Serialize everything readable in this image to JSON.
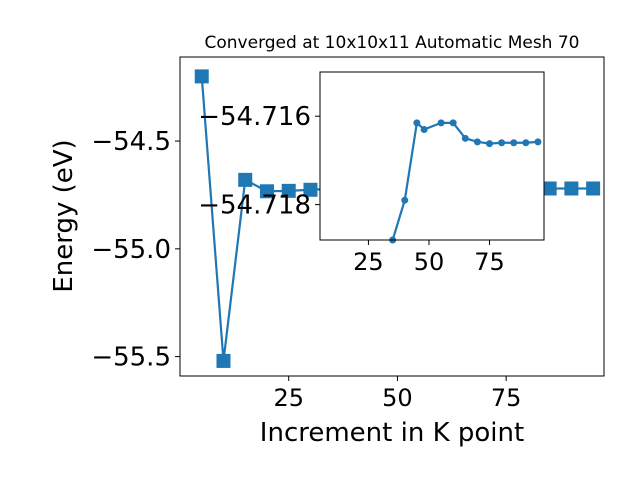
{
  "chart_data": [
    {
      "id": "main",
      "type": "line",
      "title": "Converged at 10x10x11 Automatic Mesh 70",
      "xlabel": "Increment in K point",
      "ylabel": "Energy (eV)",
      "xlim": [
        0,
        97.5
      ],
      "ylim": [
        -55.59,
        -54.11
      ],
      "xticks": [
        25,
        50,
        75
      ],
      "yticks": [
        -54.5,
        -55.0,
        -55.5
      ],
      "ytick_labels": [
        "−54.5",
        "−55.0",
        "−55.5"
      ],
      "grid": false,
      "marker": "square",
      "color": "#1f77b4",
      "series": [
        {
          "x": [
            5,
            10,
            15,
            20,
            25,
            30,
            35,
            40,
            45,
            50,
            55,
            60,
            65,
            70,
            75,
            80,
            85,
            90,
            95
          ],
          "y": [
            -54.2,
            -55.52,
            -54.68,
            -54.733,
            -54.731,
            -54.726,
            -54.722,
            -54.72,
            -54.72,
            -54.72,
            -54.72,
            -54.72,
            -54.72,
            -54.72,
            -54.72,
            -54.72,
            -54.72,
            -54.72,
            -54.72
          ]
        }
      ]
    },
    {
      "id": "inset",
      "type": "line",
      "xlim": [
        5,
        97.5
      ],
      "ylim": [
        -54.7188,
        -54.715
      ],
      "xticks": [
        25,
        50,
        75
      ],
      "yticks": [
        -54.718,
        -54.716
      ],
      "ytick_labels": [
        "−54.718",
        "−54.716"
      ],
      "grid": false,
      "marker": "circle",
      "color": "#1f77b4",
      "series": [
        {
          "x": [
            35,
            40,
            45,
            48,
            55,
            60,
            65,
            70,
            75,
            80,
            85,
            90,
            95
          ],
          "y": [
            -54.7188,
            -54.7179,
            -54.71615,
            -54.7163,
            -54.71615,
            -54.71615,
            -54.7165,
            -54.71658,
            -54.71662,
            -54.7166,
            -54.7166,
            -54.7166,
            -54.71658
          ]
        }
      ]
    }
  ]
}
